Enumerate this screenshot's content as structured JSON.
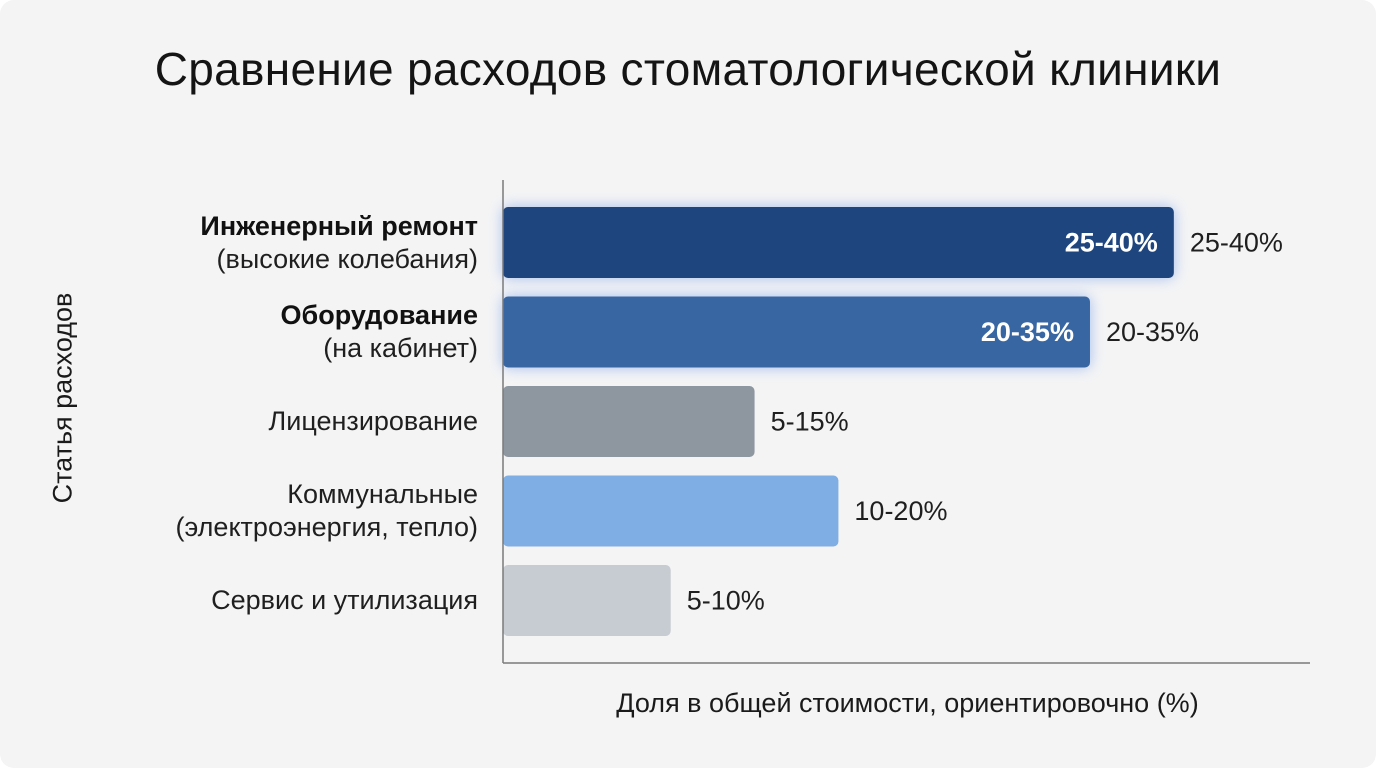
{
  "chart_data": {
    "type": "bar",
    "orientation": "horizontal",
    "title": "Сравнение расходов стоматологической клиники",
    "xlabel": "Доля в общей стоимости, ориентировочно (%)",
    "ylabel": "Статья расходов",
    "xlim": [
      0,
      48
    ],
    "grid": false,
    "categories": [
      {
        "name": "Инженерный ремонт",
        "sub": "(высокие колебания)",
        "bold": true
      },
      {
        "name": "Оборудование",
        "sub": "(на кабинет)",
        "bold": true
      },
      {
        "name": "Лицензирование",
        "sub": "",
        "bold": false
      },
      {
        "name": "Коммунальные",
        "sub": "(электроэнергия, тепло)",
        "bold": false
      },
      {
        "name": "Сервис и утилизация",
        "sub": "",
        "bold": false
      }
    ],
    "ranges": [
      [
        25,
        40
      ],
      [
        20,
        35
      ],
      [
        5,
        15
      ],
      [
        10,
        20
      ],
      [
        5,
        10
      ]
    ],
    "value_labels": [
      "25-40%",
      "20-35%",
      "5-15%",
      "10-20%",
      "5-10%"
    ],
    "inner_labels": [
      "25-40%",
      "20-35%",
      "",
      "",
      ""
    ],
    "colors": [
      "#1e457e",
      "#3866a3",
      "#8e96a0",
      "#7eaee3",
      "#c7ccd3"
    ],
    "highlighted": [
      true,
      true,
      false,
      false,
      false
    ]
  }
}
